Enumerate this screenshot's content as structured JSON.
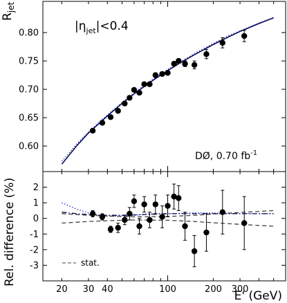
{
  "chart_data": [
    {
      "type": "line",
      "panel": "top",
      "ylabel": "R",
      "ylabel_sub": "jet",
      "ylim": [
        0.555,
        0.855
      ],
      "yticks": [
        0.6,
        0.65,
        0.7,
        0.75,
        0.8
      ],
      "ytick_labels": [
        "0.60",
        "0.65",
        "0.70",
        "0.75",
        "0.80"
      ],
      "x_scale": "log",
      "xlim": [
        15,
        600
      ],
      "annotation_eta_prefix": "|η",
      "annotation_eta_sub": "jet",
      "annotation_eta_suffix": "|<0.4",
      "annotation_experiment": "DØ, 0.70 fb",
      "annotation_experiment_sup": "-1",
      "series": [
        {
          "style": "points-with-errors",
          "x": [
            32,
            37,
            42,
            47,
            52,
            56,
            60,
            65,
            70,
            76,
            83,
            92,
            100,
            110,
            118,
            130,
            150,
            180,
            230,
            320
          ],
          "y": [
            0.627,
            0.641,
            0.651,
            0.662,
            0.675,
            0.685,
            0.699,
            0.694,
            0.709,
            0.709,
            0.725,
            0.727,
            0.729,
            0.745,
            0.75,
            0.745,
            0.743,
            0.762,
            0.782,
            0.794
          ],
          "yerr": [
            0.003,
            0.003,
            0.003,
            0.003,
            0.003,
            0.003,
            0.003,
            0.003,
            0.003,
            0.003,
            0.003,
            0.003,
            0.004,
            0.004,
            0.004,
            0.005,
            0.007,
            0.008,
            0.009,
            0.01
          ],
          "color": "#000000"
        },
        {
          "style": "solid",
          "x": [
            20,
            25,
            30,
            40,
            50,
            60,
            70,
            80,
            100,
            120,
            150,
            200,
            250,
            300,
            400,
            500
          ],
          "y": [
            0.568,
            0.6,
            0.623,
            0.653,
            0.675,
            0.692,
            0.705,
            0.716,
            0.733,
            0.746,
            0.761,
            0.779,
            0.792,
            0.802,
            0.816,
            0.826
          ],
          "color": "#000040"
        },
        {
          "style": "dotted",
          "x": [
            20,
            25,
            30,
            40,
            50,
            60,
            70,
            80,
            100,
            120,
            150,
            200,
            250,
            300,
            400,
            500
          ],
          "y": [
            0.573,
            0.603,
            0.625,
            0.655,
            0.677,
            0.694,
            0.707,
            0.718,
            0.735,
            0.748,
            0.763,
            0.781,
            0.794,
            0.803,
            0.817,
            0.827
          ],
          "color": "#1a2fd0"
        }
      ]
    },
    {
      "type": "line",
      "panel": "bottom",
      "ylabel": "Rel. difference (%)",
      "xlabel": "E' (GeV)",
      "ylim": [
        -4,
        3
      ],
      "yticks": [
        -3,
        -2,
        -1,
        0,
        1,
        2
      ],
      "ytick_labels": [
        "-3",
        "-2",
        "-1",
        "0",
        "1",
        "2"
      ],
      "x_scale": "log",
      "xlim": [
        15,
        600
      ],
      "xticks": [
        20,
        30,
        40,
        100,
        200,
        300
      ],
      "xtick_labels": [
        "20",
        "30",
        "40",
        "100",
        "200",
        "300"
      ],
      "legend_label": "stat.",
      "legend_position": "bottom-left",
      "series": [
        {
          "style": "points-with-errors",
          "x": [
            32,
            37,
            42,
            47,
            52,
            56,
            60,
            65,
            70,
            76,
            83,
            92,
            100,
            110,
            118,
            130,
            150,
            180,
            230,
            320
          ],
          "y": [
            0.3,
            0.1,
            -0.7,
            -0.6,
            -0.1,
            0.3,
            1.1,
            -0.5,
            0.9,
            -0.1,
            0.9,
            0.1,
            0.8,
            1.4,
            1.3,
            -0.5,
            -2.1,
            -0.9,
            0.4,
            -0.3
          ],
          "yerr": [
            0.2,
            0.2,
            0.2,
            0.3,
            0.3,
            0.4,
            0.4,
            0.5,
            0.5,
            0.5,
            0.6,
            0.7,
            0.7,
            0.8,
            0.8,
            0.9,
            1.0,
            1.2,
            1.4,
            1.7
          ],
          "color": "#000000"
        },
        {
          "style": "dotted",
          "x": [
            20,
            25,
            30,
            35,
            40,
            50,
            60,
            80,
            100,
            150,
            200,
            300,
            400,
            500
          ],
          "y": [
            1.0,
            0.6,
            0.35,
            0.2,
            0.15,
            0.15,
            0.2,
            0.3,
            0.3,
            0.35,
            0.35,
            0.3,
            0.3,
            0.3
          ],
          "color": "#1a2fd0"
        },
        {
          "style": "dashdot",
          "x": [
            20,
            25,
            30,
            40,
            50,
            70,
            100,
            150,
            200,
            300,
            400,
            500
          ],
          "y": [
            0.4,
            0.3,
            0.25,
            0.2,
            0.2,
            0.25,
            0.3,
            0.3,
            0.3,
            0.3,
            0.3,
            0.3
          ],
          "color": "#000040"
        },
        {
          "style": "dashed",
          "x": [
            20,
            30,
            40,
            60,
            100,
            150,
            200,
            300,
            400,
            500
          ],
          "y": [
            0.3,
            0.2,
            0.15,
            0.1,
            0.12,
            0.2,
            0.28,
            0.38,
            0.45,
            0.5
          ],
          "color": "#404040"
        },
        {
          "style": "dashed",
          "x": [
            20,
            30,
            40,
            60,
            100,
            150,
            200,
            300,
            400,
            500
          ],
          "y": [
            -0.3,
            -0.2,
            -0.15,
            -0.1,
            -0.12,
            -0.2,
            -0.28,
            -0.38,
            -0.45,
            -0.5
          ],
          "color": "#404040"
        }
      ]
    }
  ]
}
